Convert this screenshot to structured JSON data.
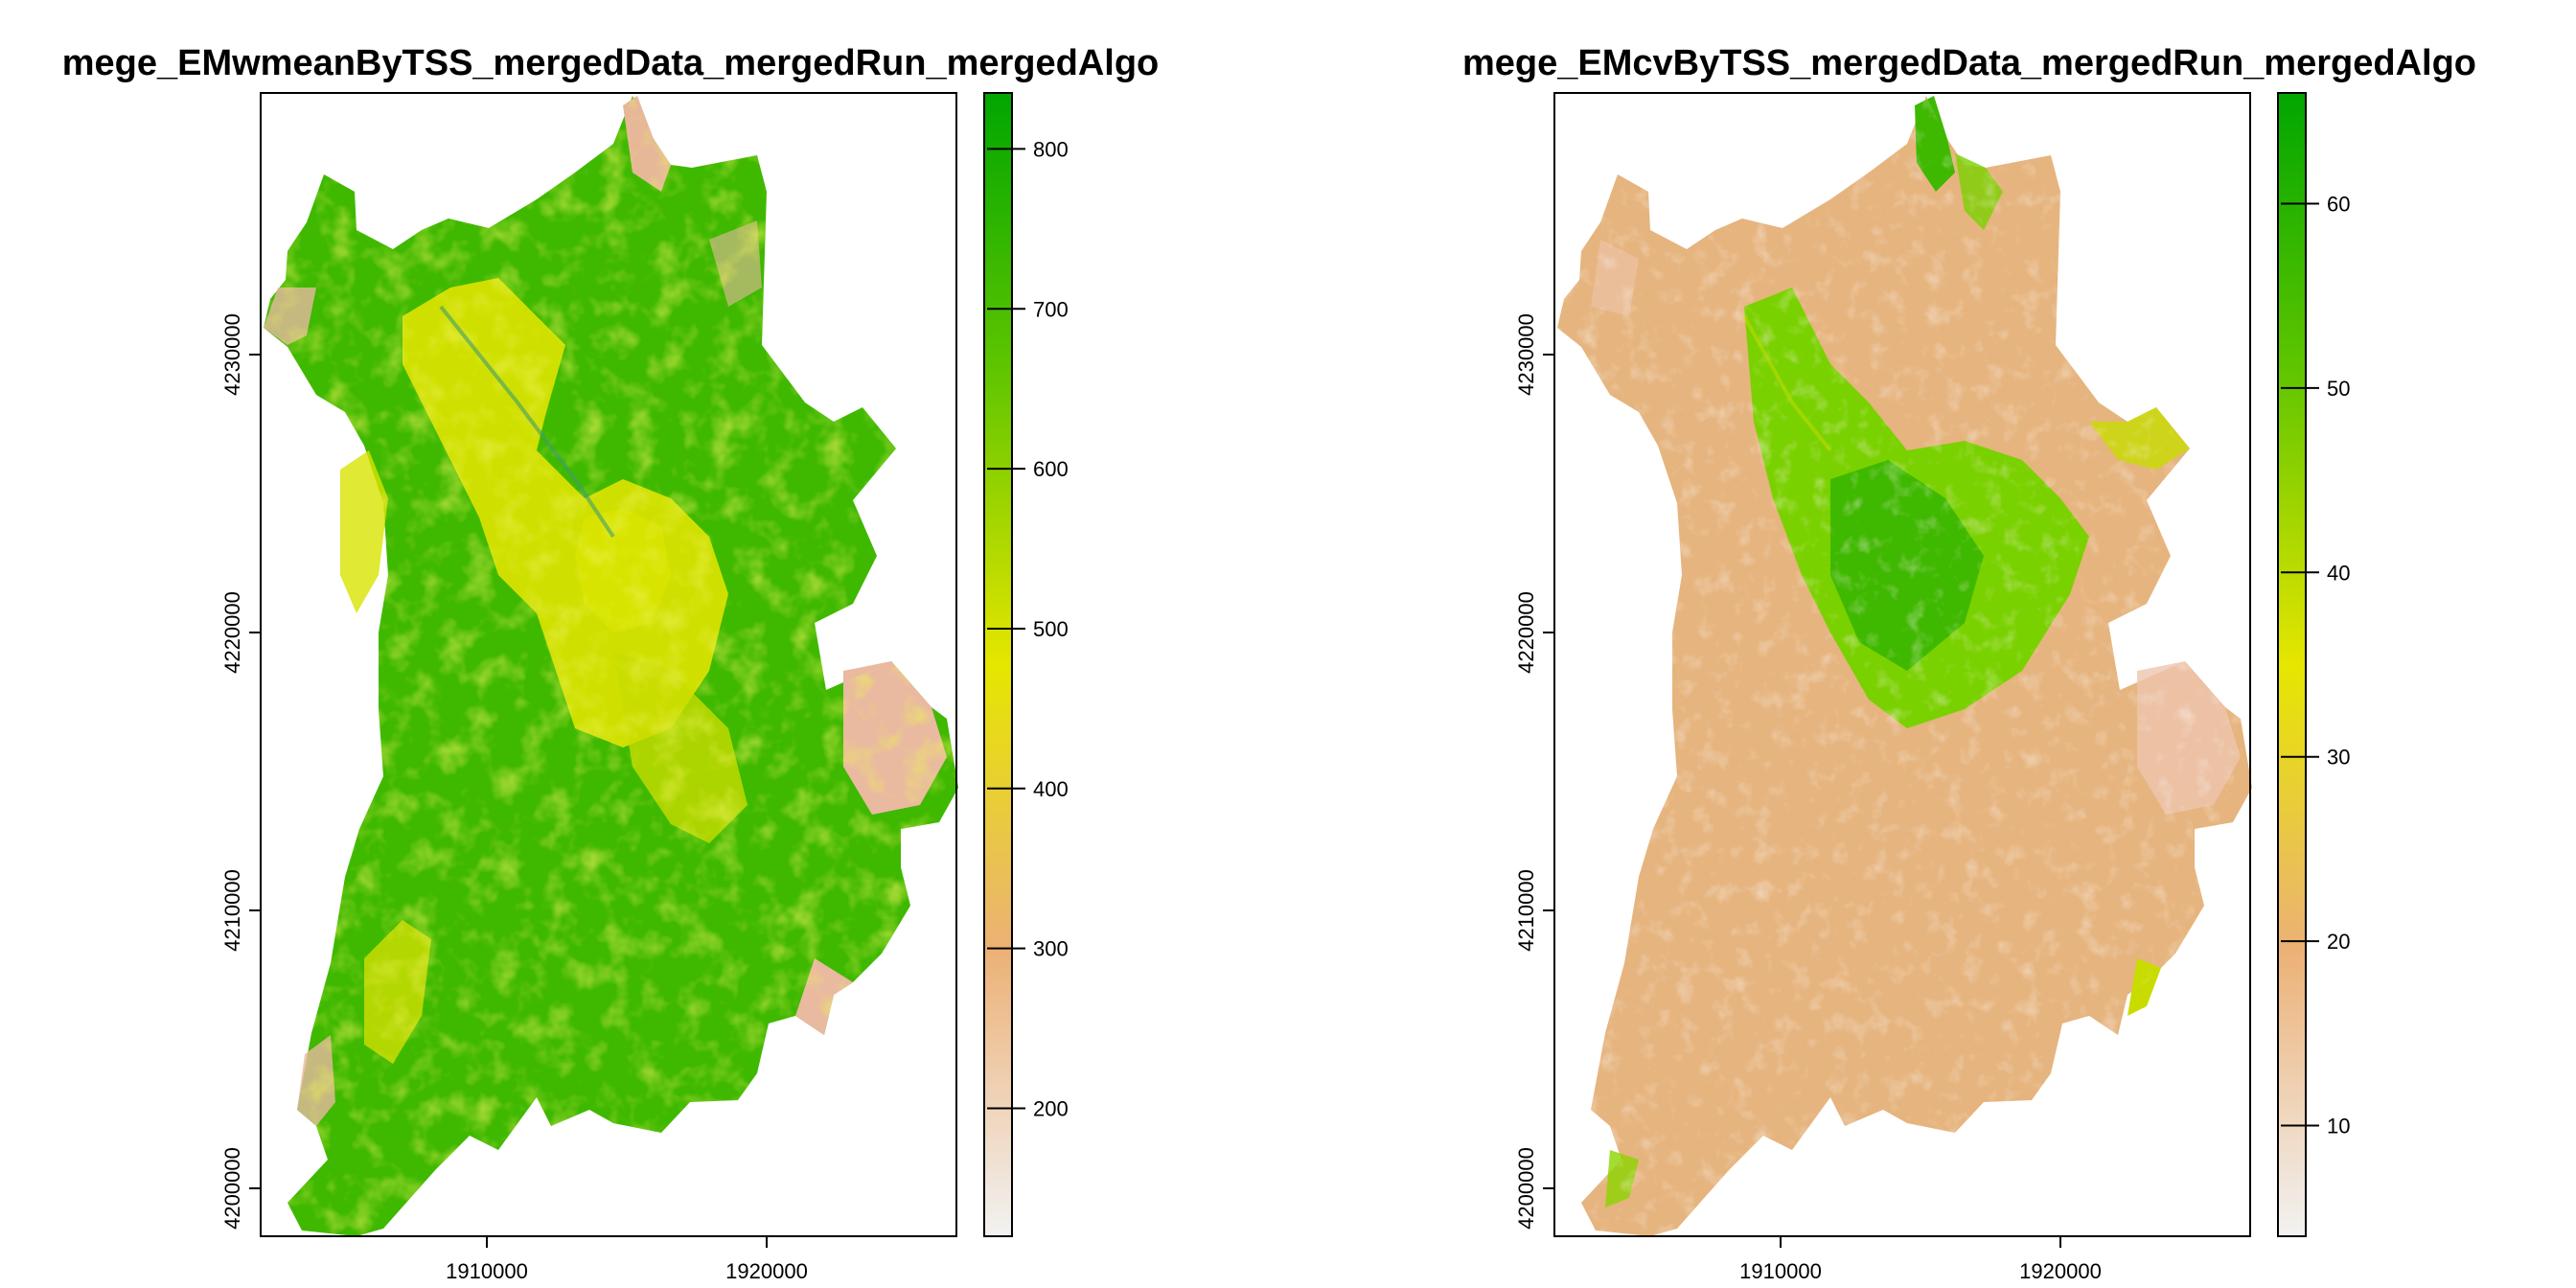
{
  "figure": {
    "panels": [
      {
        "id": "wmean",
        "title": "mege_EMwmeanByTSS_mergedData_mergedRun_mergedAlgo",
        "x_ticks": [
          "1910000",
          "1920000"
        ],
        "y_ticks": [
          "4200000",
          "4210000",
          "4220000",
          "4230000"
        ],
        "legend": {
          "ticks": [
            "200",
            "300",
            "400",
            "500",
            "600",
            "700",
            "800"
          ],
          "min": 120,
          "max": 835,
          "tick_values": [
            200,
            300,
            400,
            500,
            600,
            700,
            800
          ]
        },
        "palette": {
          "low": "#f2f2f2",
          "mid_low": "#ecb176",
          "mid": "#e6e600",
          "mid_high": "#63c600",
          "high": "#00a600"
        },
        "dominant_value": 600,
        "city_value": 470
      },
      {
        "id": "cv",
        "title": "mege_EMcvByTSS_mergedData_mergedRun_mergedAlgo",
        "x_ticks": [
          "1910000",
          "1920000"
        ],
        "y_ticks": [
          "4200000",
          "4210000",
          "4220000",
          "4230000"
        ],
        "legend": {
          "ticks": [
            "10",
            "20",
            "30",
            "40",
            "50",
            "60"
          ],
          "min": 4,
          "max": 66,
          "tick_values": [
            10,
            20,
            30,
            40,
            50,
            60
          ]
        },
        "palette": {
          "low": "#f2f2f2",
          "mid_low": "#ecb176",
          "mid": "#e6e600",
          "mid_high": "#63c600",
          "high": "#00a600"
        },
        "dominant_value": 24,
        "city_value": 45
      }
    ]
  }
}
